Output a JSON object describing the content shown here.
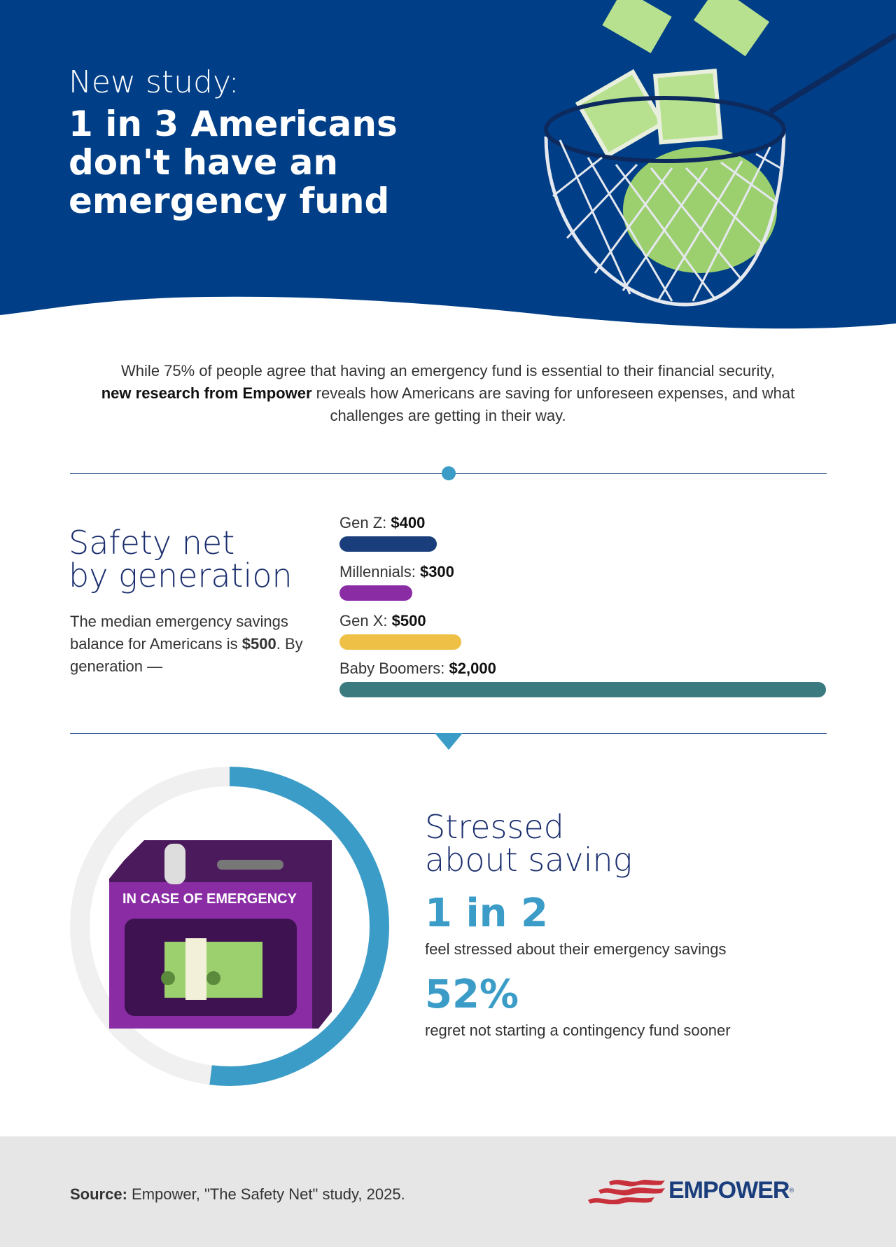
{
  "hero": {
    "subtitle": "New study:",
    "title": "1 in 3 Americans don't have an emergency fund",
    "background_color": "#003f87"
  },
  "intro": {
    "part1": "While 75% of people agree that having an emergency fund is essential to their financial security,",
    "bold": "new research from Empower",
    "part2": "reveals how Americans are saving for unforeseen expenses, and what challenges are getting in their way."
  },
  "safety_net": {
    "heading_line1": "Safety net",
    "heading_line2": "by generation",
    "desc_part1": "The median emergency savings balance for Americans is",
    "desc_bold": "$500",
    "desc_part2": ". By generation —",
    "bars": [
      {
        "label": "Gen Z:",
        "value_text": "$400",
        "value": 400,
        "color": "#1a3e7c"
      },
      {
        "label": "Millennials:",
        "value_text": "$300",
        "value": 300,
        "color": "#8a2da5"
      },
      {
        "label": "Gen X:",
        "value_text": "$500",
        "value": 500,
        "color": "#eec046"
      },
      {
        "label": "Baby Boomers:",
        "value_text": "$2,000",
        "value": 2000,
        "color": "#3b7a7f"
      }
    ],
    "max_value": 2000
  },
  "stress": {
    "box_label": "IN CASE OF EMERGENCY",
    "donut_percent": 52,
    "donut_color": "#3a9cc7",
    "heading_line1": "Stressed",
    "heading_line2": "about saving",
    "stat1_value": "1 in 2",
    "stat1_text": "feel stressed about their emergency savings",
    "stat2_value": "52%",
    "stat2_text": "regret not starting a contingency fund sooner"
  },
  "footer": {
    "source_label": "Source:",
    "source_text": "Empower, \"The Safety Net\" study, 2025.",
    "logo": "EMPOWER"
  }
}
